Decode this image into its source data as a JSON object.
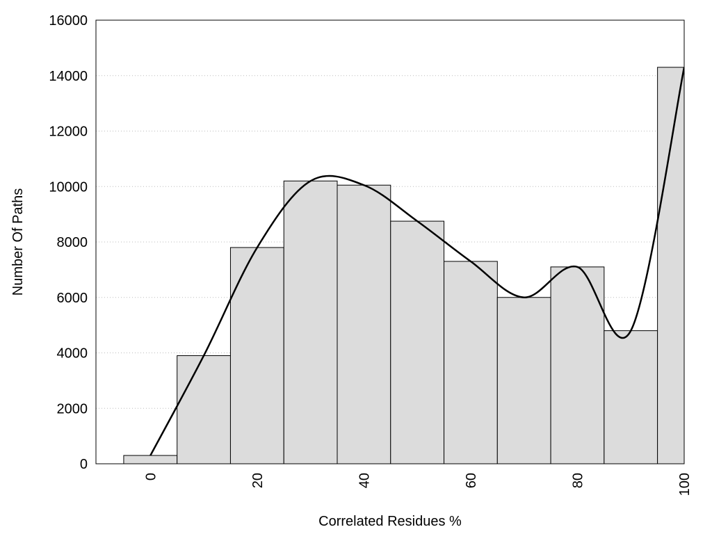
{
  "chart_data": {
    "type": "bar",
    "x_label": "Correlated Residues %",
    "y_label": "Number Of Paths",
    "x": [
      0,
      10,
      20,
      30,
      40,
      50,
      60,
      70,
      80,
      90,
      100
    ],
    "values": [
      300,
      3900,
      7800,
      10200,
      10050,
      8750,
      7300,
      6000,
      7100,
      4800,
      14300
    ],
    "color": "#dcdcdc",
    "line_color": "#000000",
    "xlim": [
      -10.2,
      100
    ],
    "xticks": [
      0,
      20,
      40,
      60,
      80,
      100
    ],
    "ylim": [
      0,
      16000
    ],
    "yticks": [
      0,
      2000,
      4000,
      6000,
      8000,
      10000,
      12000,
      14000,
      16000
    ],
    "grid": true
  }
}
